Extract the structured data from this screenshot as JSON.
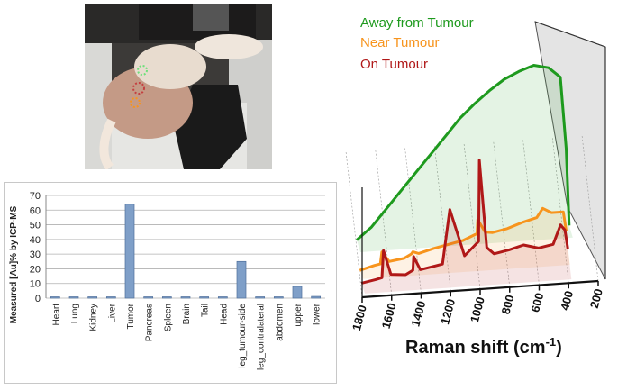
{
  "colors": {
    "away": "#1e9a1e",
    "near": "#f7941d",
    "on": "#b01818",
    "bar": "#7f9fc8",
    "bar_edge": "#4f6f9a"
  },
  "icons": {
    "photo": "mouse-on-imaging-stage-photo"
  },
  "chart_data": [
    {
      "type": "bar",
      "title": "",
      "xlabel": "",
      "ylabel": "Measured [Au]% by ICP-MS",
      "ylim": [
        0,
        70
      ],
      "yticks": [
        "0",
        "10",
        "20",
        "30",
        "40",
        "50",
        "60",
        "70"
      ],
      "grid": true,
      "categories": [
        "Heart",
        "Lung",
        "Kidney",
        "Liver",
        "Tumor",
        "Pancreas",
        "Spleen",
        "Brain",
        "Tail",
        "Head",
        "leg_tumour-side",
        "leg_contralateral",
        "abdomen",
        "upper",
        "lower"
      ],
      "values": [
        0.8,
        0.6,
        0.5,
        0.7,
        64,
        0.3,
        0.3,
        0.3,
        0.3,
        0.3,
        25,
        0.3,
        0.4,
        8,
        1.2
      ]
    },
    {
      "type": "line",
      "title": "",
      "xlabel": "Raman shift (cm-1)",
      "xlabel_main": "Raman shift (cm",
      "xlabel_sup": "-1",
      "xlabel_close": ")",
      "ylabel": "",
      "xlim": [
        1800,
        200
      ],
      "xticks": [
        "1800",
        "1600",
        "1400",
        "1200",
        "1000",
        "800",
        "600",
        "400",
        "200"
      ],
      "legend": [
        "Away from Tumour",
        "Near Tumour",
        "On Tumour"
      ],
      "series": [
        {
          "name": "Away from Tumour",
          "x": [
            1800,
            1700,
            1600,
            1500,
            1400,
            1300,
            1200,
            1100,
            1000,
            900,
            800,
            700,
            600,
            500,
            420,
            380,
            360
          ],
          "y": [
            0.05,
            0.12,
            0.22,
            0.32,
            0.42,
            0.52,
            0.62,
            0.72,
            0.8,
            0.87,
            0.93,
            0.97,
            1.0,
            0.98,
            0.92,
            0.5,
            0.05
          ]
        },
        {
          "name": "Near Tumour",
          "x": [
            1800,
            1700,
            1660,
            1650,
            1600,
            1500,
            1450,
            1440,
            1400,
            1300,
            1200,
            1100,
            1005,
            1000,
            950,
            900,
            800,
            700,
            600,
            560,
            500,
            420,
            400
          ],
          "y": [
            0.05,
            0.09,
            0.1,
            0.22,
            0.12,
            0.14,
            0.18,
            0.2,
            0.18,
            0.22,
            0.25,
            0.28,
            0.34,
            0.48,
            0.35,
            0.34,
            0.37,
            0.42,
            0.46,
            0.55,
            0.5,
            0.5,
            0.3
          ]
        },
        {
          "name": "On Tumour",
          "x": [
            1800,
            1700,
            1660,
            1650,
            1600,
            1500,
            1450,
            1445,
            1400,
            1300,
            1250,
            1200,
            1100,
            1005,
            1000,
            950,
            900,
            800,
            700,
            600,
            500,
            450,
            420,
            400
          ],
          "y": [
            0.05,
            0.07,
            0.08,
            0.28,
            0.1,
            0.09,
            0.12,
            0.22,
            0.12,
            0.14,
            0.15,
            0.55,
            0.2,
            0.3,
            0.9,
            0.25,
            0.2,
            0.22,
            0.25,
            0.22,
            0.24,
            0.38,
            0.34,
            0.2
          ]
        }
      ]
    }
  ]
}
